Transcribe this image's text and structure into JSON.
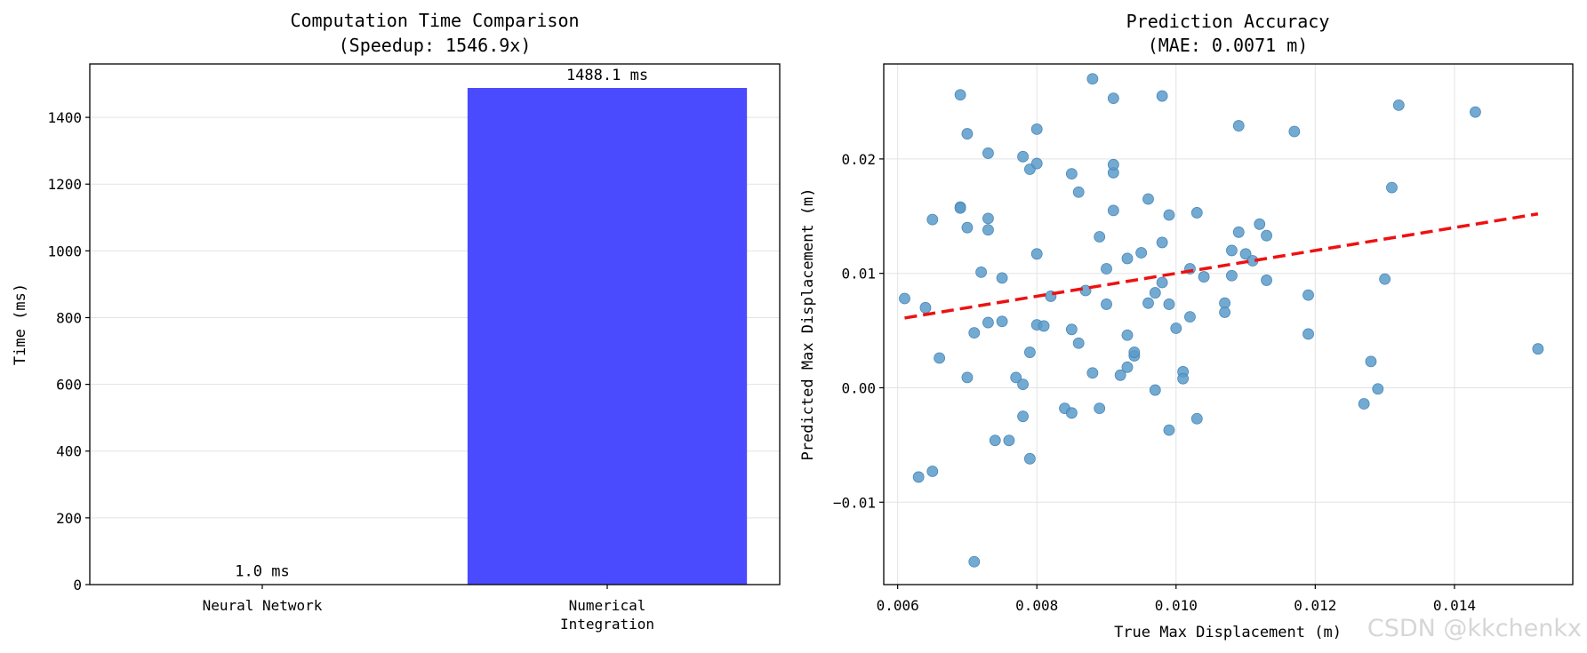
{
  "watermark": "CSDN @kkchenkx",
  "chart_data": [
    {
      "type": "bar",
      "title": "Computation Time Comparison",
      "subtitle": "(Speedup: 1546.9x)",
      "xlabel": "",
      "ylabel": "Time (ms)",
      "categories": [
        "Neural Network",
        "Numerical\nIntegration"
      ],
      "values": [
        1.0,
        1488.1
      ],
      "data_labels": [
        "1.0 ms",
        "1488.1 ms"
      ],
      "bar_color": "#4a4aff",
      "ylim": [
        0,
        1560
      ],
      "yticks": [
        0,
        200,
        400,
        600,
        800,
        1000,
        1200,
        1400
      ],
      "grid": "y"
    },
    {
      "type": "scatter",
      "title": "Prediction Accuracy",
      "subtitle": "(MAE: 0.0071 m)",
      "xlabel": "True Max Displacement (m)",
      "ylabel": "Predicted Max Displacement (m)",
      "xlim": [
        0.0058,
        0.0157
      ],
      "ylim": [
        -0.0172,
        0.0283
      ],
      "xticks": [
        0.006,
        0.008,
        0.01,
        0.012,
        0.014
      ],
      "xtick_labels": [
        "0.006",
        "0.008",
        "0.010",
        "0.012",
        "0.014"
      ],
      "yticks": [
        -0.01,
        0.0,
        0.01,
        0.02
      ],
      "ytick_labels": [
        "−0.01",
        "0.00",
        "0.01",
        "0.02"
      ],
      "grid": "both",
      "point_color": "#5b9bc9",
      "trend_color": "#ee1111",
      "trend_line": {
        "x": [
          0.0061,
          0.0152
        ],
        "y": [
          0.0061,
          0.0152
        ]
      },
      "points": [
        [
          0.0061,
          0.0078
        ],
        [
          0.0063,
          -0.0078
        ],
        [
          0.0064,
          0.007
        ],
        [
          0.0065,
          -0.0073
        ],
        [
          0.0065,
          0.0147
        ],
        [
          0.0066,
          0.0026
        ],
        [
          0.0069,
          0.0256
        ],
        [
          0.0069,
          0.0158
        ],
        [
          0.0069,
          0.0157
        ],
        [
          0.007,
          0.0222
        ],
        [
          0.007,
          0.014
        ],
        [
          0.007,
          0.0009
        ],
        [
          0.0071,
          0.0048
        ],
        [
          0.0071,
          -0.0152
        ],
        [
          0.0072,
          0.0101
        ],
        [
          0.0073,
          0.0138
        ],
        [
          0.0073,
          0.0205
        ],
        [
          0.0073,
          0.0148
        ],
        [
          0.0073,
          0.0057
        ],
        [
          0.0074,
          -0.0046
        ],
        [
          0.0075,
          0.0096
        ],
        [
          0.0075,
          0.0058
        ],
        [
          0.0076,
          -0.0046
        ],
        [
          0.0077,
          0.0009
        ],
        [
          0.0078,
          0.0003
        ],
        [
          0.0078,
          -0.0025
        ],
        [
          0.0078,
          0.0202
        ],
        [
          0.0079,
          0.0191
        ],
        [
          0.0079,
          0.0031
        ],
        [
          0.0079,
          -0.0062
        ],
        [
          0.008,
          0.0226
        ],
        [
          0.008,
          0.0055
        ],
        [
          0.008,
          0.0117
        ],
        [
          0.008,
          0.0196
        ],
        [
          0.0081,
          0.0054
        ],
        [
          0.0082,
          0.008
        ],
        [
          0.0084,
          -0.0018
        ],
        [
          0.0085,
          0.0187
        ],
        [
          0.0085,
          0.0051
        ],
        [
          0.0085,
          -0.0022
        ],
        [
          0.0086,
          0.0171
        ],
        [
          0.0086,
          0.0039
        ],
        [
          0.0087,
          0.0085
        ],
        [
          0.0088,
          0.027
        ],
        [
          0.0088,
          0.0013
        ],
        [
          0.0089,
          -0.0018
        ],
        [
          0.0089,
          0.0132
        ],
        [
          0.009,
          0.0104
        ],
        [
          0.009,
          0.0073
        ],
        [
          0.0091,
          0.0253
        ],
        [
          0.0091,
          0.0188
        ],
        [
          0.0091,
          0.0155
        ],
        [
          0.0091,
          0.0195
        ],
        [
          0.0092,
          0.0011
        ],
        [
          0.0093,
          0.0046
        ],
        [
          0.0093,
          0.0018
        ],
        [
          0.0093,
          0.0113
        ],
        [
          0.0094,
          0.0028
        ],
        [
          0.0094,
          0.0031
        ],
        [
          0.0095,
          0.0118
        ],
        [
          0.0096,
          0.0074
        ],
        [
          0.0096,
          0.0165
        ],
        [
          0.0097,
          0.0083
        ],
        [
          0.0097,
          -0.0002
        ],
        [
          0.0098,
          0.0255
        ],
        [
          0.0098,
          0.0127
        ],
        [
          0.0098,
          0.0092
        ],
        [
          0.0099,
          0.0151
        ],
        [
          0.0099,
          -0.0037
        ],
        [
          0.0099,
          0.0073
        ],
        [
          0.01,
          0.0052
        ],
        [
          0.0101,
          0.0014
        ],
        [
          0.0101,
          0.0008
        ],
        [
          0.0102,
          0.0104
        ],
        [
          0.0102,
          0.0062
        ],
        [
          0.0103,
          -0.0027
        ],
        [
          0.0103,
          0.0153
        ],
        [
          0.0104,
          0.0097
        ],
        [
          0.0107,
          0.0074
        ],
        [
          0.0107,
          0.0066
        ],
        [
          0.0108,
          0.012
        ],
        [
          0.0108,
          0.0098
        ],
        [
          0.0109,
          0.0136
        ],
        [
          0.0109,
          0.0229
        ],
        [
          0.011,
          0.0117
        ],
        [
          0.0111,
          0.0111
        ],
        [
          0.0112,
          0.0143
        ],
        [
          0.0113,
          0.0094
        ],
        [
          0.0113,
          0.0133
        ],
        [
          0.0117,
          0.0224
        ],
        [
          0.0119,
          0.0081
        ],
        [
          0.0119,
          0.0047
        ],
        [
          0.0127,
          -0.0014
        ],
        [
          0.0128,
          0.0023
        ],
        [
          0.0129,
          -0.0001
        ],
        [
          0.013,
          0.0095
        ],
        [
          0.0131,
          0.0175
        ],
        [
          0.0132,
          0.0247
        ],
        [
          0.0143,
          0.0241
        ],
        [
          0.0152,
          0.0034
        ]
      ]
    }
  ]
}
